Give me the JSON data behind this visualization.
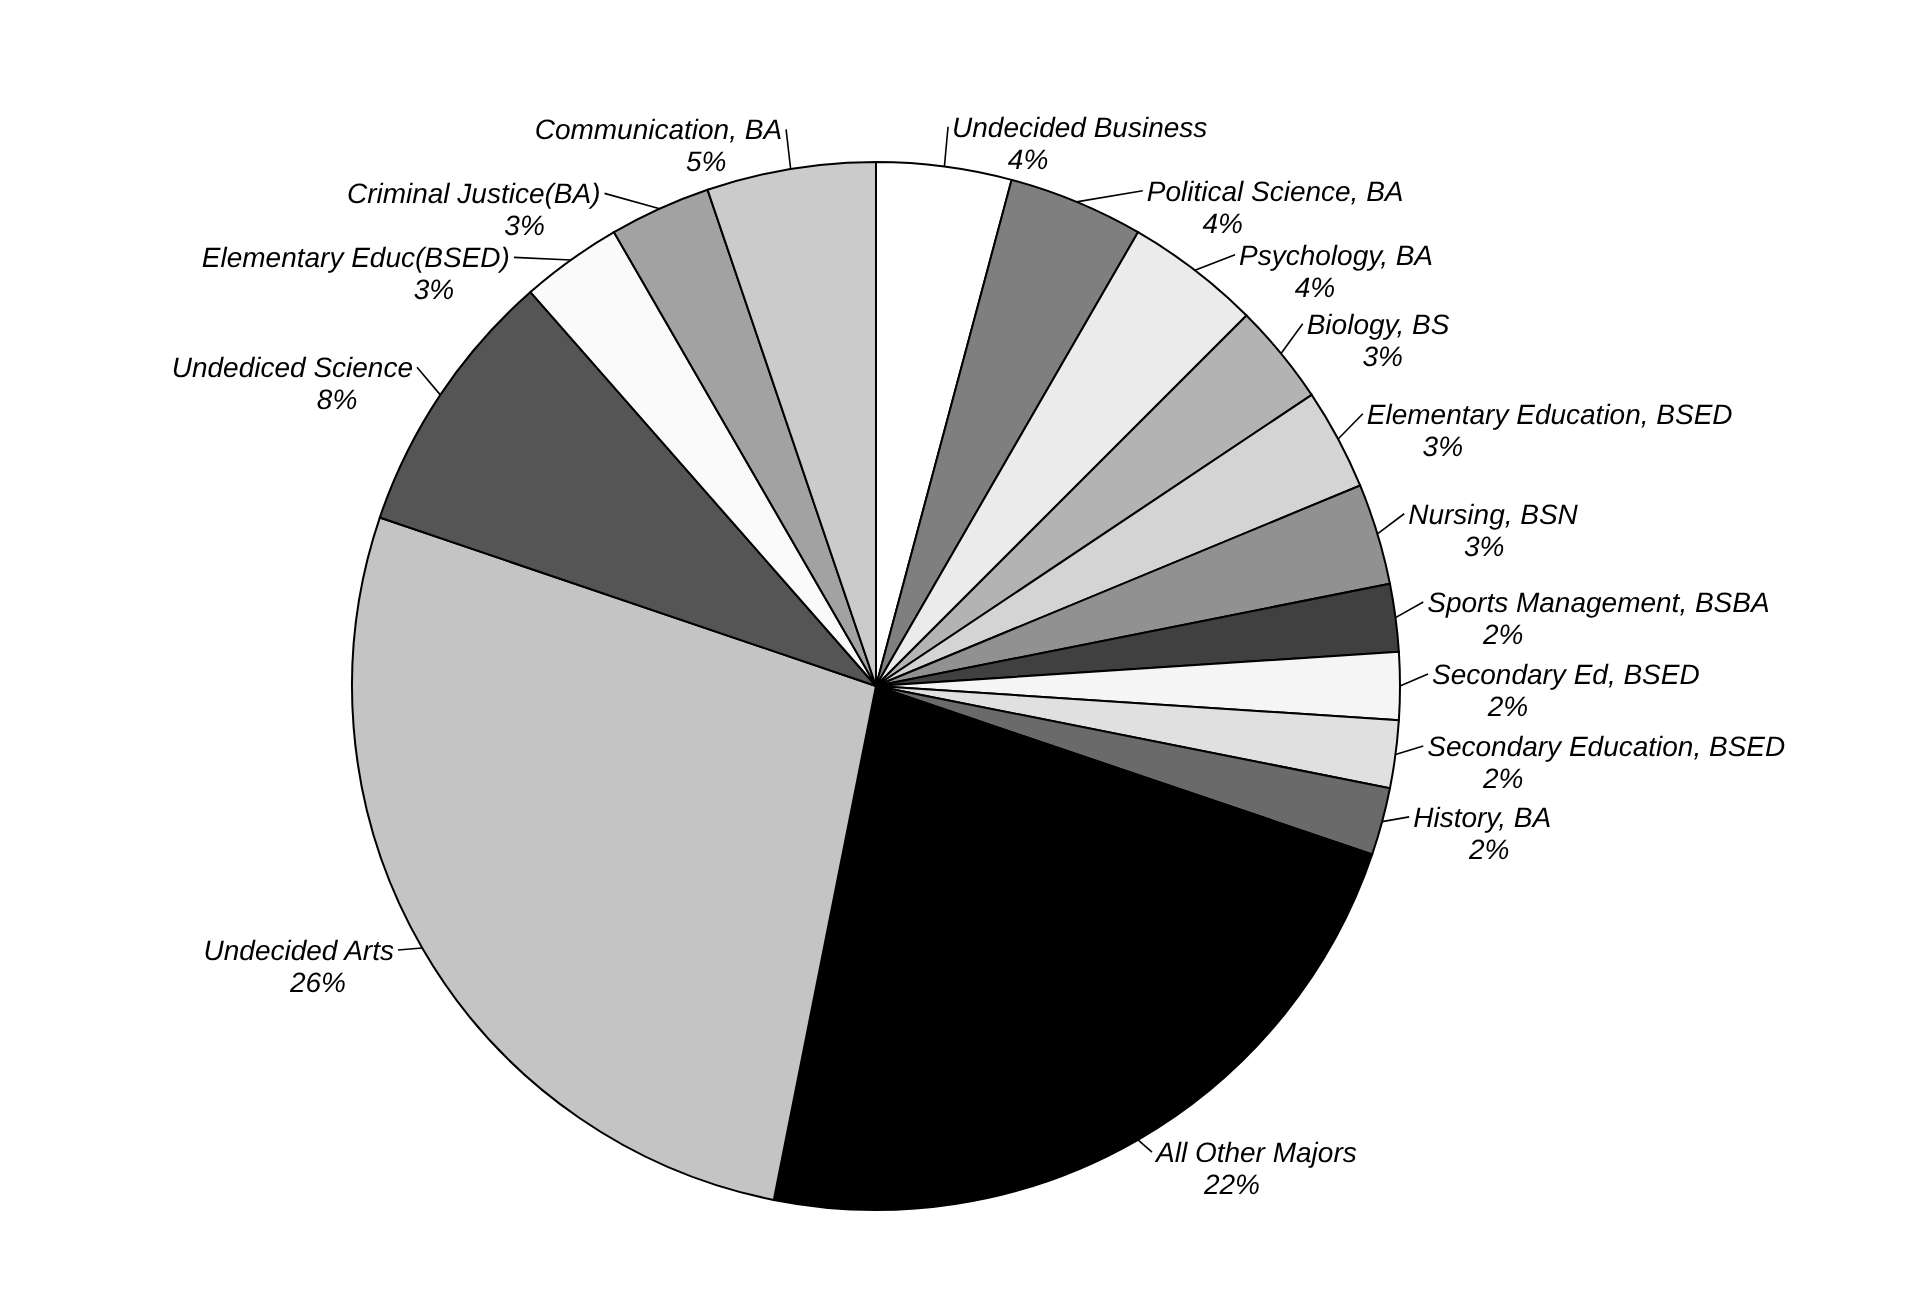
{
  "chart_data": {
    "type": "pie",
    "categories": [
      "Undecided Business",
      "Political Science, BA",
      "Psychology, BA",
      "Biology, BS",
      "Elementary Education, BSED",
      "Nursing, BSN",
      "Sports Management, BSBA",
      "Secondary Ed, BSED",
      "Secondary Education, BSED",
      "History, BA",
      "All Other Majors",
      "Undecided Arts",
      "Undediced Science",
      "Elementary Educ(BSED)",
      "Criminal Justice(BA)",
      "Communication, BA"
    ],
    "values": [
      4,
      4,
      4,
      3,
      3,
      3,
      2,
      2,
      2,
      2,
      22,
      26,
      8,
      3,
      3,
      5
    ],
    "value_labels": [
      "4%",
      "4%",
      "4%",
      "3%",
      "3%",
      "3%",
      "2%",
      "2%",
      "2%",
      "2%",
      "22%",
      "26%",
      "8%",
      "3%",
      "3%",
      "5%"
    ],
    "colors": [
      "#ffffff",
      "#7f7f7f",
      "#ebebeb",
      "#b3b3b3",
      "#d4d4d4",
      "#919191",
      "#404040",
      "#f5f5f5",
      "#e0e0e0",
      "#6a6a6a",
      "#000000",
      "#c4c4c4",
      "#555555",
      "#fafafa",
      "#a2a2a2",
      "#cbcbcb"
    ]
  }
}
